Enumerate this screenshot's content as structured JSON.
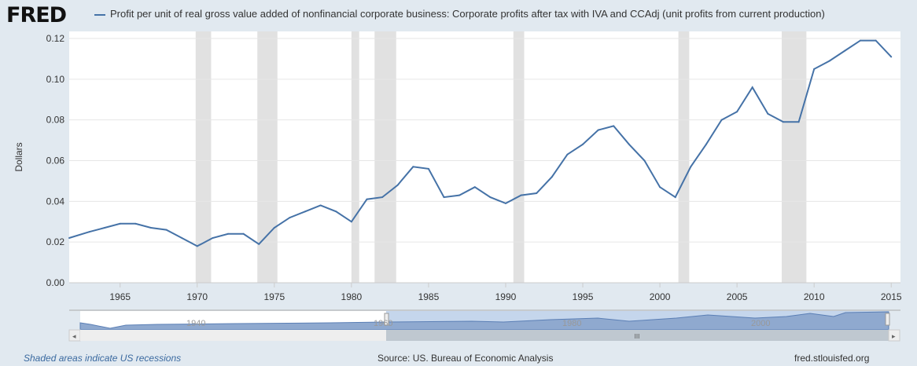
{
  "header": {
    "logo": "FRED",
    "series_title": "Profit per unit of real gross value added of nonfinancial corporate business: Corporate profits after tax with IVA and CCAdj (unit profits from current production)"
  },
  "footer": {
    "recessions": "Shaded areas indicate US recessions",
    "source": "Source: US. Bureau of Economic Analysis",
    "site": "fred.stlouisfed.org"
  },
  "navigator": {
    "labels": [
      "1940",
      "1960",
      "1980",
      "2000"
    ],
    "scroll_grip": "III"
  },
  "colors": {
    "line": "#4572a7",
    "recession": "#e1e1e1"
  },
  "chart_data": {
    "type": "line",
    "title": "Profit per unit of real gross value added of nonfinancial corporate business: Corporate profits after tax with IVA and CCAdj (unit profits from current production)",
    "xlabel": "",
    "ylabel": "Dollars",
    "xlim": [
      1961.7,
      2015.6
    ],
    "ylim": [
      0,
      0.12
    ],
    "xticks": [
      "1965",
      "1970",
      "1975",
      "1980",
      "1985",
      "1990",
      "1995",
      "2000",
      "2005",
      "2010",
      "2015"
    ],
    "yticks": [
      "0.00",
      "0.02",
      "0.04",
      "0.06",
      "0.08",
      "0.10",
      "0.12"
    ],
    "recessions": [
      [
        1969.9,
        1970.9
      ],
      [
        1973.9,
        1975.2
      ],
      [
        1980.0,
        1980.5
      ],
      [
        1981.5,
        1982.9
      ],
      [
        1990.5,
        1991.2
      ],
      [
        2001.2,
        2001.9
      ],
      [
        2007.9,
        2009.5
      ]
    ],
    "x": [
      1961.7,
      1963,
      1964,
      1965,
      1966,
      1967,
      1968,
      1969,
      1970,
      1971,
      1972,
      1973,
      1974,
      1975,
      1976,
      1977,
      1978,
      1979,
      1980,
      1981,
      1982,
      1983,
      1984,
      1985,
      1986,
      1987,
      1988,
      1989,
      1990,
      1991,
      1992,
      1993,
      1994,
      1995,
      1996,
      1997,
      1998,
      1999,
      2000,
      2001,
      2002,
      2003,
      2004,
      2005,
      2006,
      2007,
      2008,
      2009,
      2010,
      2011,
      2012,
      2013,
      2014,
      2015
    ],
    "series": [
      {
        "name": "Profit per unit",
        "values": [
          0.022,
          0.025,
          0.027,
          0.029,
          0.029,
          0.027,
          0.026,
          0.022,
          0.018,
          0.022,
          0.024,
          0.024,
          0.019,
          0.027,
          0.032,
          0.035,
          0.038,
          0.035,
          0.03,
          0.041,
          0.042,
          0.048,
          0.057,
          0.056,
          0.042,
          0.043,
          0.047,
          0.042,
          0.039,
          0.043,
          0.044,
          0.052,
          0.063,
          0.068,
          0.075,
          0.077,
          0.068,
          0.06,
          0.047,
          0.042,
          0.057,
          0.068,
          0.08,
          0.084,
          0.096,
          0.083,
          0.079,
          0.079,
          0.105,
          0.109,
          0.114,
          0.119,
          0.119,
          0.111
        ]
      }
    ]
  }
}
